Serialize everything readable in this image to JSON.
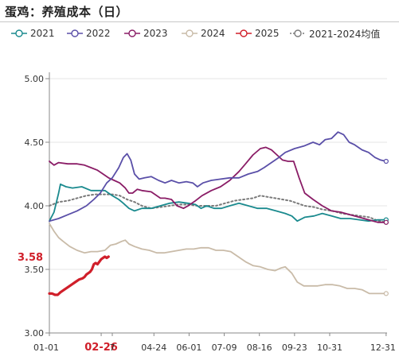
{
  "title": "蛋鸡：养殖成本（日）",
  "colors": {
    "2021": "#1a8a8e",
    "2022": "#5a4fa8",
    "2023": "#8a1c66",
    "2024": "#c9bba8",
    "2025": "#d01f2a",
    "avg": "#7a7a7a"
  },
  "chart_data": {
    "type": "line",
    "title": "蛋鸡：养殖成本（日）",
    "xlabel": "",
    "ylabel": "",
    "ylim": [
      3.0,
      5.0
    ],
    "y_ticks": [
      "3.00",
      "3.50",
      "4.00",
      "4.50",
      "5.00"
    ],
    "x_range_days": [
      0,
      365
    ],
    "x_ticks": [
      {
        "label": "01-01",
        "day": 0
      },
      {
        "label": "02-26",
        "day": 56,
        "highlight": true
      },
      {
        "label": "7",
        "day": 68
      },
      {
        "label": "04-24",
        "day": 113
      },
      {
        "label": "06-01",
        "day": 151
      },
      {
        "label": "07-09",
        "day": 189
      },
      {
        "label": "08-16",
        "day": 227
      },
      {
        "label": "09-23",
        "day": 265
      },
      {
        "label": "10-31",
        "day": 303
      },
      {
        "label": "12-31",
        "day": 364
      }
    ],
    "current_value_label": "3.58",
    "grid": "horizontal",
    "legend_position": "top",
    "series": [
      {
        "name": "2021",
        "key": "2021",
        "dotted": false,
        "points": [
          [
            0,
            3.88
          ],
          [
            5,
            3.95
          ],
          [
            10,
            4.1
          ],
          [
            12,
            4.17
          ],
          [
            18,
            4.15
          ],
          [
            25,
            4.14
          ],
          [
            35,
            4.15
          ],
          [
            45,
            4.12
          ],
          [
            52,
            4.12
          ],
          [
            60,
            4.12
          ],
          [
            68,
            4.08
          ],
          [
            75,
            4.05
          ],
          [
            80,
            4.02
          ],
          [
            86,
            3.98
          ],
          [
            92,
            3.96
          ],
          [
            100,
            3.98
          ],
          [
            110,
            3.98
          ],
          [
            120,
            4.0
          ],
          [
            130,
            4.02
          ],
          [
            140,
            4.03
          ],
          [
            150,
            4.02
          ],
          [
            158,
            4.01
          ],
          [
            164,
            3.98
          ],
          [
            170,
            4.0
          ],
          [
            178,
            3.98
          ],
          [
            186,
            3.98
          ],
          [
            195,
            4.0
          ],
          [
            205,
            4.02
          ],
          [
            215,
            4.0
          ],
          [
            225,
            3.98
          ],
          [
            235,
            3.98
          ],
          [
            245,
            3.96
          ],
          [
            255,
            3.94
          ],
          [
            262,
            3.92
          ],
          [
            268,
            3.88
          ],
          [
            276,
            3.91
          ],
          [
            286,
            3.92
          ],
          [
            295,
            3.94
          ],
          [
            305,
            3.92
          ],
          [
            315,
            3.9
          ],
          [
            325,
            3.9
          ],
          [
            335,
            3.89
          ],
          [
            345,
            3.88
          ],
          [
            355,
            3.89
          ],
          [
            364,
            3.89
          ]
        ]
      },
      {
        "name": "2022",
        "key": "2022",
        "dotted": false,
        "points": [
          [
            0,
            3.88
          ],
          [
            10,
            3.9
          ],
          [
            20,
            3.93
          ],
          [
            30,
            3.96
          ],
          [
            40,
            4.0
          ],
          [
            48,
            4.05
          ],
          [
            55,
            4.1
          ],
          [
            62,
            4.18
          ],
          [
            68,
            4.22
          ],
          [
            75,
            4.3
          ],
          [
            80,
            4.38
          ],
          [
            84,
            4.41
          ],
          [
            88,
            4.36
          ],
          [
            92,
            4.25
          ],
          [
            97,
            4.21
          ],
          [
            103,
            4.22
          ],
          [
            110,
            4.23
          ],
          [
            118,
            4.2
          ],
          [
            125,
            4.18
          ],
          [
            132,
            4.2
          ],
          [
            140,
            4.18
          ],
          [
            148,
            4.19
          ],
          [
            155,
            4.18
          ],
          [
            160,
            4.15
          ],
          [
            166,
            4.18
          ],
          [
            175,
            4.2
          ],
          [
            185,
            4.21
          ],
          [
            195,
            4.22
          ],
          [
            205,
            4.22
          ],
          [
            215,
            4.25
          ],
          [
            225,
            4.27
          ],
          [
            232,
            4.3
          ],
          [
            240,
            4.34
          ],
          [
            248,
            4.38
          ],
          [
            255,
            4.42
          ],
          [
            265,
            4.45
          ],
          [
            275,
            4.47
          ],
          [
            285,
            4.5
          ],
          [
            292,
            4.48
          ],
          [
            298,
            4.52
          ],
          [
            305,
            4.53
          ],
          [
            312,
            4.58
          ],
          [
            318,
            4.56
          ],
          [
            324,
            4.5
          ],
          [
            330,
            4.48
          ],
          [
            338,
            4.44
          ],
          [
            345,
            4.42
          ],
          [
            352,
            4.38
          ],
          [
            358,
            4.36
          ],
          [
            364,
            4.35
          ]
        ]
      },
      {
        "name": "2023",
        "key": "2023",
        "dotted": false,
        "points": [
          [
            0,
            4.35
          ],
          [
            5,
            4.32
          ],
          [
            10,
            4.34
          ],
          [
            20,
            4.33
          ],
          [
            30,
            4.33
          ],
          [
            38,
            4.32
          ],
          [
            45,
            4.3
          ],
          [
            52,
            4.28
          ],
          [
            58,
            4.25
          ],
          [
            64,
            4.22
          ],
          [
            70,
            4.2
          ],
          [
            76,
            4.18
          ],
          [
            82,
            4.14
          ],
          [
            86,
            4.1
          ],
          [
            90,
            4.1
          ],
          [
            95,
            4.13
          ],
          [
            100,
            4.12
          ],
          [
            110,
            4.11
          ],
          [
            120,
            4.06
          ],
          [
            125,
            4.06
          ],
          [
            132,
            4.05
          ],
          [
            138,
            4.0
          ],
          [
            145,
            3.98
          ],
          [
            150,
            4.0
          ],
          [
            158,
            4.04
          ],
          [
            165,
            4.08
          ],
          [
            175,
            4.12
          ],
          [
            185,
            4.15
          ],
          [
            195,
            4.2
          ],
          [
            205,
            4.27
          ],
          [
            212,
            4.33
          ],
          [
            220,
            4.4
          ],
          [
            228,
            4.45
          ],
          [
            234,
            4.46
          ],
          [
            240,
            4.44
          ],
          [
            246,
            4.4
          ],
          [
            252,
            4.36
          ],
          [
            258,
            4.35
          ],
          [
            264,
            4.35
          ],
          [
            270,
            4.22
          ],
          [
            276,
            4.1
          ],
          [
            285,
            4.05
          ],
          [
            295,
            4.0
          ],
          [
            305,
            3.96
          ],
          [
            315,
            3.95
          ],
          [
            325,
            3.93
          ],
          [
            335,
            3.91
          ],
          [
            345,
            3.89
          ],
          [
            355,
            3.87
          ],
          [
            364,
            3.87
          ]
        ]
      },
      {
        "name": "2024",
        "key": "2024",
        "dotted": false,
        "points": [
          [
            0,
            3.86
          ],
          [
            5,
            3.8
          ],
          [
            10,
            3.75
          ],
          [
            15,
            3.72
          ],
          [
            22,
            3.68
          ],
          [
            30,
            3.65
          ],
          [
            38,
            3.63
          ],
          [
            45,
            3.64
          ],
          [
            52,
            3.64
          ],
          [
            60,
            3.65
          ],
          [
            66,
            3.69
          ],
          [
            72,
            3.7
          ],
          [
            78,
            3.72
          ],
          [
            82,
            3.73
          ],
          [
            86,
            3.7
          ],
          [
            92,
            3.68
          ],
          [
            100,
            3.66
          ],
          [
            108,
            3.65
          ],
          [
            116,
            3.63
          ],
          [
            124,
            3.63
          ],
          [
            132,
            3.64
          ],
          [
            140,
            3.65
          ],
          [
            148,
            3.66
          ],
          [
            156,
            3.66
          ],
          [
            164,
            3.67
          ],
          [
            172,
            3.67
          ],
          [
            180,
            3.65
          ],
          [
            188,
            3.65
          ],
          [
            196,
            3.64
          ],
          [
            204,
            3.6
          ],
          [
            212,
            3.56
          ],
          [
            220,
            3.53
          ],
          [
            228,
            3.52
          ],
          [
            236,
            3.5
          ],
          [
            244,
            3.49
          ],
          [
            250,
            3.51
          ],
          [
            255,
            3.52
          ],
          [
            262,
            3.47
          ],
          [
            268,
            3.4
          ],
          [
            275,
            3.37
          ],
          [
            282,
            3.37
          ],
          [
            290,
            3.37
          ],
          [
            298,
            3.38
          ],
          [
            306,
            3.38
          ],
          [
            314,
            3.37
          ],
          [
            322,
            3.35
          ],
          [
            330,
            3.35
          ],
          [
            338,
            3.34
          ],
          [
            346,
            3.31
          ],
          [
            352,
            3.31
          ],
          [
            358,
            3.31
          ],
          [
            364,
            3.31
          ]
        ]
      },
      {
        "name": "2025",
        "key": "2025",
        "dotted": false,
        "points": [
          [
            0,
            3.31
          ],
          [
            3,
            3.31
          ],
          [
            6,
            3.3
          ],
          [
            9,
            3.3
          ],
          [
            12,
            3.32
          ],
          [
            16,
            3.34
          ],
          [
            20,
            3.36
          ],
          [
            24,
            3.38
          ],
          [
            28,
            3.4
          ],
          [
            32,
            3.42
          ],
          [
            36,
            3.43
          ],
          [
            38,
            3.44
          ],
          [
            40,
            3.46
          ],
          [
            42,
            3.47
          ],
          [
            44,
            3.48
          ],
          [
            46,
            3.5
          ],
          [
            48,
            3.54
          ],
          [
            50,
            3.55
          ],
          [
            52,
            3.54
          ],
          [
            54,
            3.56
          ],
          [
            56,
            3.58
          ],
          [
            58,
            3.59
          ],
          [
            60,
            3.6
          ],
          [
            62,
            3.59
          ],
          [
            64,
            3.6
          ]
        ]
      },
      {
        "name": "2021-2024均值",
        "key": "avg",
        "dotted": true,
        "points": [
          [
            0,
            4.0
          ],
          [
            10,
            4.03
          ],
          [
            20,
            4.04
          ],
          [
            30,
            4.06
          ],
          [
            40,
            4.08
          ],
          [
            50,
            4.09
          ],
          [
            60,
            4.09
          ],
          [
            68,
            4.09
          ],
          [
            76,
            4.08
          ],
          [
            84,
            4.05
          ],
          [
            92,
            4.03
          ],
          [
            100,
            4.0
          ],
          [
            110,
            3.98
          ],
          [
            120,
            3.99
          ],
          [
            130,
            4.0
          ],
          [
            140,
            4.01
          ],
          [
            150,
            4.01
          ],
          [
            160,
            4.0
          ],
          [
            170,
            4.0
          ],
          [
            180,
            4.0
          ],
          [
            190,
            4.02
          ],
          [
            200,
            4.04
          ],
          [
            210,
            4.05
          ],
          [
            220,
            4.06
          ],
          [
            228,
            4.08
          ],
          [
            236,
            4.07
          ],
          [
            244,
            4.06
          ],
          [
            252,
            4.05
          ],
          [
            260,
            4.04
          ],
          [
            268,
            4.02
          ],
          [
            276,
            4.0
          ],
          [
            286,
            3.99
          ],
          [
            296,
            3.97
          ],
          [
            306,
            3.96
          ],
          [
            316,
            3.94
          ],
          [
            326,
            3.93
          ],
          [
            336,
            3.92
          ],
          [
            346,
            3.91
          ],
          [
            356,
            3.88
          ],
          [
            364,
            3.87
          ]
        ]
      }
    ]
  }
}
